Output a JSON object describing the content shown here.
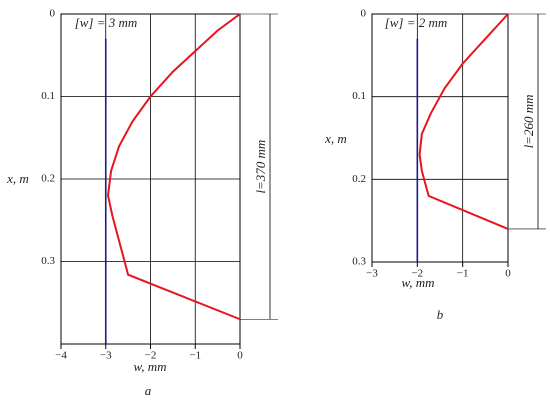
{
  "chart_data": [
    {
      "type": "line",
      "caption": "a",
      "x_label": "w, mm",
      "y_label": "x, m",
      "annotation": "[w] = 3 mm",
      "dimension": "l=370 mm",
      "xlim": [
        -4,
        0
      ],
      "ylim": [
        0,
        0.4
      ],
      "xticks": [
        {
          "value": -4,
          "label": "−4"
        },
        {
          "value": -3,
          "label": "−3"
        },
        {
          "value": -2,
          "label": "−2"
        },
        {
          "value": -1,
          "label": "−1"
        },
        0
      ],
      "yticks": [
        0,
        0.1,
        0.2,
        0.3
      ],
      "grid": true,
      "series": [
        {
          "color": "#e8141e",
          "x": [
            0,
            -0.5,
            -1,
            -1.5,
            -2,
            -2.4,
            -2.7,
            -2.88,
            -2.95,
            -2.85,
            -2.5,
            0
          ],
          "values": [
            0,
            0.02,
            0.045,
            0.07,
            0.1,
            0.13,
            0.16,
            0.19,
            0.22,
            0.245,
            0.316,
            0.37
          ]
        },
        {
          "color": "#1a1a8c",
          "x": [
            -3,
            -3
          ],
          "values": [
            0.03,
            0.4
          ]
        }
      ]
    },
    {
      "type": "line",
      "caption": "b",
      "x_label": "w, mm",
      "y_label": "x, m",
      "annotation": "[w] = 2 mm",
      "dimension": "l=260 mm",
      "xlim": [
        -3,
        0
      ],
      "ylim": [
        0,
        0.3
      ],
      "xticks": [
        {
          "value": -3,
          "label": "−3"
        },
        {
          "value": -2,
          "label": "−2"
        },
        {
          "value": -1,
          "label": "−1"
        },
        0
      ],
      "yticks": [
        0,
        0.1,
        0.2,
        0.3
      ],
      "grid": true,
      "series": [
        {
          "color": "#e8141e",
          "x": [
            0,
            -0.5,
            -1,
            -1.4,
            -1.7,
            -1.9,
            -1.95,
            -1.9,
            -1.75,
            0
          ],
          "values": [
            0,
            0.03,
            0.06,
            0.09,
            0.12,
            0.145,
            0.17,
            0.19,
            0.22,
            0.26
          ]
        },
        {
          "color": "#1a1a8c",
          "x": [
            -2,
            -2
          ],
          "values": [
            0.03,
            0.3
          ]
        }
      ]
    }
  ]
}
